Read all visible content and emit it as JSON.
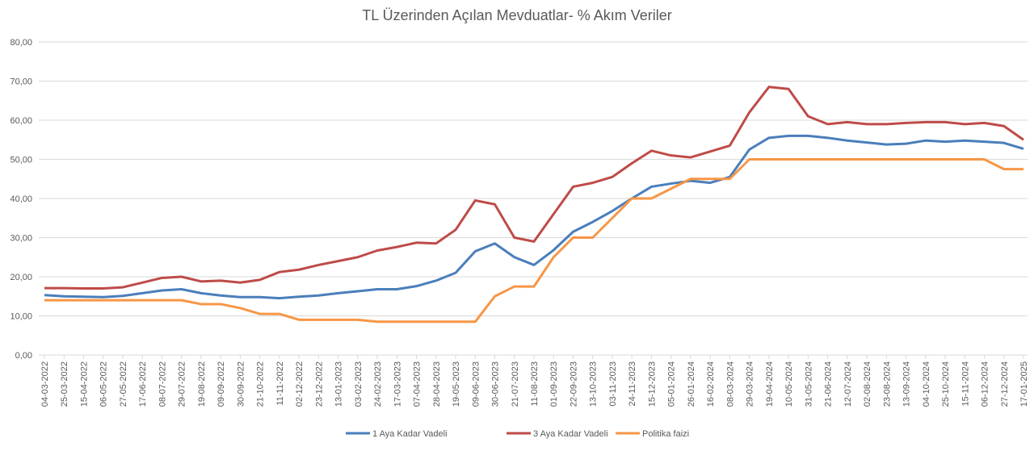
{
  "chart_data": {
    "type": "line",
    "title": "TL Üzerinden Açılan Mevduatlar- % Akım Veriler",
    "categories": [
      "04-03-2022",
      "25-03-2022",
      "15-04-2022",
      "06-05-2022",
      "27-05-2022",
      "17-06-2022",
      "08-07-2022",
      "29-07-2022",
      "19-08-2022",
      "09-09-2022",
      "30-09-2022",
      "21-10-2022",
      "11-11-2022",
      "02-12-2022",
      "23-12-2022",
      "13-01-2023",
      "03-02-2023",
      "24-02-2023",
      "17-03-2023",
      "07-04-2023",
      "28-04-2023",
      "19-05-2023",
      "09-06-2023",
      "30-06-2023",
      "21-07-2023",
      "11-08-2023",
      "01-09-2023",
      "22-09-2023",
      "13-10-2023",
      "03-11-2023",
      "24-11-2023",
      "15-12-2023",
      "05-01-2024",
      "26-01-2024",
      "16-02-2024",
      "08-03-2024",
      "29-03-2024",
      "19-04-2024",
      "10-05-2024",
      "31-05-2024",
      "21-06-2024",
      "12-07-2024",
      "02-08-2024",
      "23-08-2024",
      "13-09-2024",
      "04-10-2024",
      "25-10-2024",
      "15-11-2024",
      "06-12-2024",
      "27-12-2024",
      "17-01-2025"
    ],
    "series": [
      {
        "name": "1 Aya Kadar Vadeli",
        "color": "#4a7ebb",
        "values": [
          15.3,
          15.0,
          14.9,
          14.8,
          15.1,
          15.8,
          16.5,
          16.8,
          15.8,
          15.2,
          14.8,
          14.8,
          14.5,
          14.9,
          15.2,
          15.8,
          16.3,
          16.8,
          16.8,
          17.6,
          19.0,
          21.0,
          26.5,
          28.5,
          25.0,
          23.0,
          26.8,
          31.5,
          34.0,
          36.8,
          40.0,
          43.0,
          43.8,
          44.5,
          44.0,
          45.5,
          52.5,
          55.5,
          56.0,
          56.0,
          55.5,
          54.8,
          54.3,
          53.8,
          54.0,
          54.8,
          54.5,
          54.8,
          54.5,
          54.2,
          52.7
        ]
      },
      {
        "name": "3 Aya Kadar Vadeli",
        "color": "#be4b48",
        "values": [
          17.1,
          17.1,
          17.0,
          17.0,
          17.3,
          18.5,
          19.7,
          20.0,
          18.8,
          19.0,
          18.5,
          19.2,
          21.2,
          21.8,
          23.0,
          24.0,
          25.0,
          26.7,
          27.6,
          28.7,
          28.5,
          32.0,
          39.5,
          38.5,
          30.0,
          29.0,
          36.0,
          43.0,
          44.0,
          45.5,
          49.0,
          52.2,
          51.0,
          50.5,
          52.0,
          53.5,
          62.0,
          68.5,
          68.0,
          61.0,
          59.0,
          59.5,
          59.0,
          59.0,
          59.3,
          59.5,
          59.5,
          59.0,
          59.3,
          58.5,
          55.0
        ]
      },
      {
        "name": "Politika faizi",
        "color": "#f79646",
        "values": [
          14,
          14,
          14,
          14,
          14,
          14,
          14,
          14,
          13,
          13,
          12,
          10.5,
          10.5,
          9,
          9,
          9,
          9,
          8.5,
          8.5,
          8.5,
          8.5,
          8.5,
          8.5,
          15,
          17.5,
          17.5,
          25,
          30,
          30,
          35,
          40,
          40,
          42.5,
          45,
          45,
          45,
          50,
          50,
          50,
          50,
          50,
          50,
          50,
          50,
          50,
          50,
          50,
          50,
          50,
          47.5,
          47.5
        ]
      }
    ],
    "ylim": [
      0,
      80
    ],
    "yticks": [
      {
        "value": 0,
        "label": "0,00"
      },
      {
        "value": 10,
        "label": "10,00"
      },
      {
        "value": 20,
        "label": "20,00"
      },
      {
        "value": 30,
        "label": "30,00"
      },
      {
        "value": 40,
        "label": "40,00"
      },
      {
        "value": 50,
        "label": "50,00"
      },
      {
        "value": 60,
        "label": "60,00"
      },
      {
        "value": 70,
        "label": "70,00"
      },
      {
        "value": 80,
        "label": "80,00"
      }
    ],
    "grid": true,
    "legend": "bottom"
  }
}
